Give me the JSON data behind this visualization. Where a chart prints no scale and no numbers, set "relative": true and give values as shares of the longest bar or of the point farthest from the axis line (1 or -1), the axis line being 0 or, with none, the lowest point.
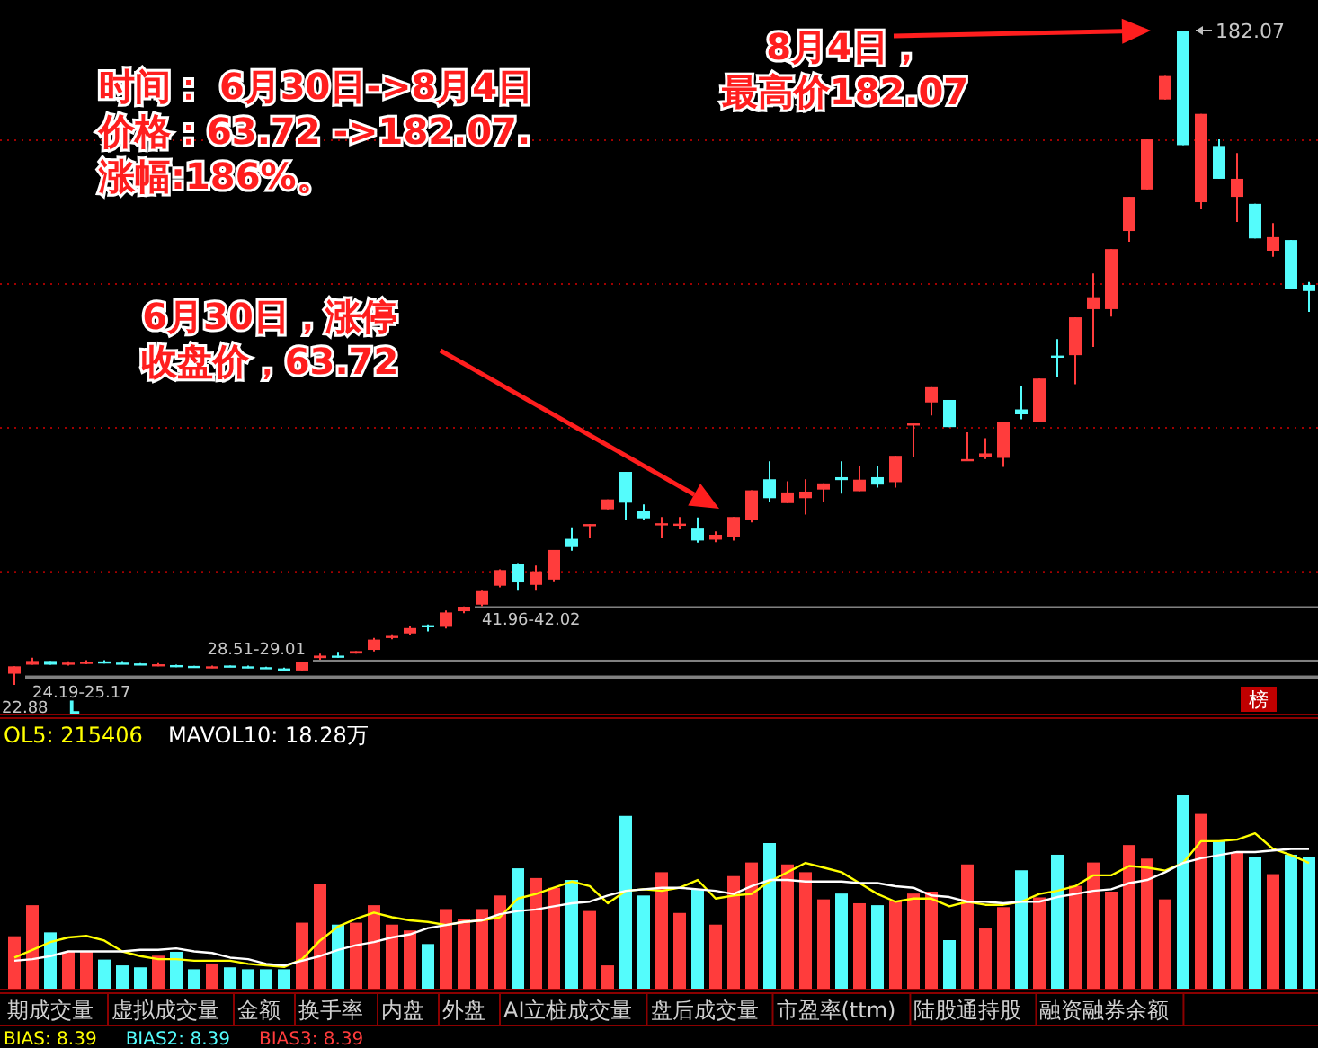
{
  "chart_data": [
    {
      "type": "candlestick",
      "categories": [
        null,
        null,
        null,
        null,
        null,
        null,
        null,
        null,
        null,
        null,
        null,
        null,
        null,
        null,
        null,
        null,
        null,
        null,
        null,
        null,
        null,
        null,
        null,
        null,
        null,
        null,
        null,
        null,
        null,
        null,
        null,
        null,
        null,
        null,
        null,
        null,
        null,
        null,
        null,
        null,
        null,
        null,
        null,
        null,
        null,
        null,
        null,
        null,
        null,
        null,
        null,
        null,
        null,
        null,
        null,
        null,
        null,
        null,
        null,
        null,
        null,
        null,
        null,
        null,
        null,
        null,
        null,
        null,
        null,
        null,
        null,
        null,
        null
      ],
      "ohlc": [
        [
          25.6,
          27.4,
          22.88,
          27.4
        ],
        [
          27.8,
          29.5,
          27.8,
          28.7
        ],
        [
          28.7,
          28.7,
          27.8,
          27.8
        ],
        [
          27.9,
          28.6,
          27.6,
          28.3
        ],
        [
          28.1,
          28.9,
          27.9,
          28.5
        ],
        [
          28.6,
          28.9,
          28.1,
          28.4
        ],
        [
          28.3,
          28.7,
          27.9,
          28.1
        ],
        [
          28.1,
          28.2,
          27.9,
          28.0
        ],
        [
          27.6,
          28.2,
          27.4,
          27.9
        ],
        [
          27.7,
          27.8,
          27.2,
          27.5
        ],
        [
          27.5,
          27.5,
          27.2,
          27.3
        ],
        [
          27.2,
          27.6,
          27.0,
          27.4
        ],
        [
          27.6,
          27.6,
          27.3,
          27.4
        ],
        [
          27.4,
          27.6,
          27.0,
          27.2
        ],
        [
          27.2,
          27.3,
          26.9,
          27.0
        ],
        [
          26.9,
          27.1,
          26.5,
          26.8
        ],
        [
          26.4,
          28.51,
          26.3,
          28.5
        ],
        [
          29.4,
          30.5,
          29.01,
          30.0
        ],
        [
          30.0,
          30.9,
          29.5,
          29.7
        ],
        [
          30.5,
          31.1,
          30.5,
          31.1
        ],
        [
          31.4,
          34.3,
          31.0,
          33.9
        ],
        [
          34.3,
          35.2,
          34.0,
          34.8
        ],
        [
          35.4,
          37.1,
          35.0,
          36.7
        ],
        [
          37.4,
          37.6,
          35.9,
          37.1
        ],
        [
          37.0,
          41.0,
          36.6,
          40.5
        ],
        [
          40.8,
          41.96,
          40.3,
          41.9
        ],
        [
          42.4,
          46.0,
          42.02,
          45.9
        ],
        [
          47.0,
          51.0,
          46.6,
          50.8
        ],
        [
          52.3,
          52.5,
          46.0,
          47.8
        ],
        [
          47.2,
          51.9,
          46.0,
          50.5
        ],
        [
          48.5,
          55.7,
          48.1,
          55.7
        ],
        [
          58.4,
          61.2,
          55.5,
          56.4
        ],
        [
          61.7,
          62.0,
          58.5,
          62.0
        ],
        [
          65.6,
          68.0,
          65.6,
          68.0
        ],
        [
          74.7,
          74.7,
          62.9,
          67.2
        ],
        [
          65.2,
          66.8,
          63.0,
          63.4
        ],
        [
          62.0,
          63.7,
          58.5,
          62.2
        ],
        [
          61.9,
          63.7,
          60.7,
          62.1
        ],
        [
          60.9,
          63.6,
          57.5,
          58.0
        ],
        [
          58.2,
          60.2,
          57.6,
          59.4
        ],
        [
          58.8,
          63.72,
          58.0,
          63.72
        ],
        [
          63.0,
          70.2,
          62.4,
          70.2
        ],
        [
          72.9,
          77.3,
          67.3,
          68.3
        ],
        [
          67.1,
          72.4,
          67.1,
          69.7
        ],
        [
          68.3,
          72.9,
          64.3,
          69.9
        ],
        [
          70.4,
          71.9,
          67.3,
          71.9
        ],
        [
          73.4,
          77.3,
          69.4,
          72.7
        ],
        [
          70.0,
          76.0,
          70.0,
          72.8
        ],
        [
          73.4,
          76.0,
          70.9,
          71.6
        ],
        [
          72.2,
          78.6,
          70.9,
          78.6
        ],
        [
          86.3,
          86.5,
          78.3,
          86.5
        ],
        [
          91.6,
          95.3,
          88.4,
          95.3
        ],
        [
          92.2,
          92.2,
          85.6,
          85.6
        ],
        [
          77.6,
          84.3,
          77.6,
          77.8
        ],
        [
          78.3,
          82.9,
          77.8,
          79.2
        ],
        [
          78.1,
          86.8,
          75.9,
          86.8
        ],
        [
          89.9,
          95.6,
          87.5,
          88.7
        ],
        [
          86.8,
          97.4,
          86.8,
          97.4
        ],
        [
          103.0,
          107.0,
          97.8,
          102.6
        ],
        [
          103.1,
          112.3,
          96.0,
          112.3
        ],
        [
          114.3,
          123.0,
          105.1,
          117.2
        ],
        [
          114.3,
          128.9,
          112.5,
          128.9
        ],
        [
          133.3,
          141.6,
          130.7,
          141.6
        ],
        [
          143.4,
          155.6,
          143.4,
          155.6
        ],
        [
          165.3,
          171.0,
          165.3,
          171.0
        ],
        [
          182.07,
          182.07,
          154.2,
          154.2
        ],
        [
          140.3,
          161.8,
          138.8,
          161.8
        ],
        [
          154.0,
          155.6,
          146.0,
          146.0
        ],
        [
          141.6,
          152.3,
          135.5,
          146.0
        ],
        [
          139.9,
          139.9,
          131.5,
          131.5
        ],
        [
          128.5,
          135.2,
          127.0,
          131.8
        ],
        [
          131.1,
          131.1,
          119.1,
          119.1
        ],
        [
          120.2,
          120.9,
          113.6,
          118.7
        ]
      ],
      "colors": [
        "#ff3c3c",
        "#ff3c3c",
        "#54fcfc",
        "#ff3c3c",
        "#ff3c3c",
        "#54fcfc",
        "#54fcfc",
        "#54fcfc",
        "#ff3c3c",
        "#54fcfc",
        "#54fcfc",
        "#ff3c3c",
        "#54fcfc",
        "#54fcfc",
        "#54fcfc",
        "#54fcfc",
        "#ff3c3c",
        "#ff3c3c",
        "#54fcfc",
        "#ff3c3c",
        "#ff3c3c",
        "#ff3c3c",
        "#ff3c3c",
        "#54fcfc",
        "#ff3c3c",
        "#ff3c3c",
        "#ff3c3c",
        "#ff3c3c",
        "#54fcfc",
        "#ff3c3c",
        "#ff3c3c",
        "#54fcfc",
        "#ff3c3c",
        "#ff3c3c",
        "#54fcfc",
        "#54fcfc",
        "#ff3c3c",
        "#ff3c3c",
        "#54fcfc",
        "#ff3c3c",
        "#ff3c3c",
        "#ff3c3c",
        "#54fcfc",
        "#ff3c3c",
        "#ff3c3c",
        "#ff3c3c",
        "#54fcfc",
        "#ff3c3c",
        "#54fcfc",
        "#ff3c3c",
        "#ff3c3c",
        "#ff3c3c",
        "#54fcfc",
        "#ff3c3c",
        "#ff3c3c",
        "#ff3c3c",
        "#54fcfc",
        "#ff3c3c",
        "#54fcfc",
        "#ff3c3c",
        "#ff3c3c",
        "#ff3c3c",
        "#ff3c3c",
        "#ff3c3c",
        "#ff3c3c",
        "#54fcfc",
        "#ff3c3c",
        "#54fcfc",
        "#ff3c3c",
        "#54fcfc",
        "#ff3c3c",
        "#54fcfc",
        "#54fcfc"
      ],
      "yticks": [
        {
          "value": 50.4,
          "label": null
        },
        {
          "value": 85.4,
          "label": null
        },
        {
          "value": 120.4,
          "label": null
        },
        {
          "value": 155.4,
          "label": null
        }
      ],
      "grid": "y",
      "bands": [
        {
          "axis": "y",
          "from": 41.96,
          "to": 42.02,
          "label": "41.96-42.02",
          "color": "#808080"
        },
        {
          "axis": "y",
          "from": 28.51,
          "to": 29.01,
          "label": "28.51-29.01",
          "color": "#808080"
        },
        {
          "axis": "y",
          "from": 24.19,
          "to": 25.17,
          "label": "24.19-25.17",
          "color": "#808080"
        }
      ],
      "annotations": [
        "时间： 6月30日->8月4日",
        "价格：63.72 ->182.07.",
        "涨幅:186%。",
        "6月30日，涨停",
        "收盘价，63.72",
        "8月4日，",
        "最高价182.07",
        "182.07",
        "22.88",
        "L",
        "榜"
      ]
    },
    {
      "type": "bar",
      "relative": true,
      "categories": [
        null,
        null,
        null,
        null,
        null,
        null,
        null,
        null,
        null,
        null,
        null,
        null,
        null,
        null,
        null,
        null,
        null,
        null,
        null,
        null,
        null,
        null,
        null,
        null,
        null,
        null,
        null,
        null,
        null,
        null,
        null,
        null,
        null,
        null,
        null,
        null,
        null,
        null,
        null,
        null,
        null,
        null,
        null,
        null,
        null,
        null,
        null,
        null,
        null,
        null,
        null,
        null,
        null,
        null,
        null,
        null,
        null,
        null,
        null,
        null,
        null,
        null,
        null,
        null,
        null,
        null,
        null,
        null,
        null,
        null,
        null,
        null,
        null
      ],
      "colors": [
        "#ff3c3c",
        "#ff3c3c",
        "#54fcfc",
        "#ff3c3c",
        "#ff3c3c",
        "#54fcfc",
        "#54fcfc",
        "#54fcfc",
        "#ff3c3c",
        "#54fcfc",
        "#54fcfc",
        "#ff3c3c",
        "#54fcfc",
        "#54fcfc",
        "#54fcfc",
        "#54fcfc",
        "#ff3c3c",
        "#ff3c3c",
        "#54fcfc",
        "#ff3c3c",
        "#ff3c3c",
        "#ff3c3c",
        "#ff3c3c",
        "#54fcfc",
        "#ff3c3c",
        "#ff3c3c",
        "#ff3c3c",
        "#ff3c3c",
        "#54fcfc",
        "#ff3c3c",
        "#ff3c3c",
        "#54fcfc",
        "#ff3c3c",
        "#ff3c3c",
        "#54fcfc",
        "#54fcfc",
        "#ff3c3c",
        "#ff3c3c",
        "#54fcfc",
        "#ff3c3c",
        "#ff3c3c",
        "#ff3c3c",
        "#54fcfc",
        "#ff3c3c",
        "#ff3c3c",
        "#ff3c3c",
        "#54fcfc",
        "#ff3c3c",
        "#54fcfc",
        "#ff3c3c",
        "#ff3c3c",
        "#ff3c3c",
        "#54fcfc",
        "#ff3c3c",
        "#ff3c3c",
        "#ff3c3c",
        "#54fcfc",
        "#ff3c3c",
        "#54fcfc",
        "#ff3c3c",
        "#ff3c3c",
        "#ff3c3c",
        "#ff3c3c",
        "#ff3c3c",
        "#ff3c3c",
        "#54fcfc",
        "#ff3c3c",
        "#54fcfc",
        "#ff3c3c",
        "#54fcfc",
        "#ff3c3c",
        "#54fcfc",
        "#54fcfc"
      ],
      "values": [
        0.27,
        0.43,
        0.29,
        0.19,
        0.19,
        0.15,
        0.12,
        0.11,
        0.17,
        0.19,
        0.1,
        0.13,
        0.11,
        0.1,
        0.1,
        0.1,
        0.34,
        0.54,
        0.33,
        0.34,
        0.43,
        0.33,
        0.3,
        0.23,
        0.41,
        0.36,
        0.41,
        0.48,
        0.62,
        0.57,
        0.52,
        0.56,
        0.4,
        0.12,
        0.89,
        0.48,
        0.6,
        0.39,
        0.51,
        0.33,
        0.58,
        0.65,
        0.75,
        0.64,
        0.6,
        0.46,
        0.49,
        0.44,
        0.43,
        0.45,
        0.49,
        0.5,
        0.25,
        0.64,
        0.31,
        0.42,
        0.61,
        0.47,
        0.69,
        0.53,
        0.65,
        0.5,
        0.74,
        0.67,
        0.46,
        1,
        0.9,
        0.76,
        0.7,
        0.68,
        0.59,
        0.69,
        0.68
      ]
    },
    {
      "type": "line",
      "relative": true,
      "categories": [
        null,
        null,
        null,
        null,
        null,
        null,
        null,
        null,
        null,
        null,
        null,
        null,
        null,
        null,
        null,
        null,
        null,
        null,
        null,
        null,
        null,
        null,
        null,
        null,
        null,
        null,
        null,
        null,
        null,
        null,
        null,
        null,
        null,
        null,
        null,
        null,
        null,
        null,
        null,
        null,
        null,
        null,
        null,
        null,
        null,
        null,
        null,
        null,
        null,
        null,
        null,
        null,
        null,
        null,
        null,
        null,
        null,
        null,
        null,
        null,
        null,
        null,
        null,
        null,
        null,
        null,
        null,
        null,
        null,
        null,
        null,
        null,
        null
      ],
      "series": [
        {
          "name": "OL5: 215406",
          "color": "#ffff00",
          "values": [
            0.2,
            0.25,
            0.3,
            0.33,
            0.34,
            0.31,
            0.24,
            0.21,
            0.19,
            0.19,
            0.18,
            0.18,
            0.18,
            0.16,
            0.15,
            0.14,
            0.19,
            0.31,
            0.4,
            0.45,
            0.49,
            0.46,
            0.44,
            0.43,
            0.41,
            0.43,
            0.44,
            0.46,
            0.58,
            0.61,
            0.65,
            0.69,
            0.66,
            0.55,
            0.63,
            0.64,
            0.63,
            0.65,
            0.7,
            0.58,
            0.6,
            0.61,
            0.69,
            0.75,
            0.81,
            0.78,
            0.75,
            0.68,
            0.61,
            0.56,
            0.58,
            0.58,
            0.53,
            0.56,
            0.54,
            0.54,
            0.56,
            0.61,
            0.63,
            0.66,
            0.73,
            0.73,
            0.79,
            0.78,
            0.76,
            0.81,
            0.95,
            0.95,
            0.96,
            1,
            0.9,
            0.86,
            0.81
          ]
        },
        {
          "name": "MAVOL10: 18.28万",
          "color": "#ffffff",
          "values": [
            0.18,
            0.19,
            0.21,
            0.24,
            0.24,
            0.24,
            0.24,
            0.25,
            0.25,
            0.26,
            0.24,
            0.23,
            0.2,
            0.19,
            0.16,
            0.15,
            0.18,
            0.21,
            0.25,
            0.28,
            0.3,
            0.33,
            0.35,
            0.39,
            0.41,
            0.43,
            0.44,
            0.48,
            0.5,
            0.51,
            0.53,
            0.55,
            0.56,
            0.6,
            0.63,
            0.64,
            0.65,
            0.65,
            0.64,
            0.63,
            0.61,
            0.66,
            0.7,
            0.7,
            0.69,
            0.69,
            0.69,
            0.68,
            0.68,
            0.66,
            0.65,
            0.6,
            0.59,
            0.56,
            0.56,
            0.55,
            0.56,
            0.56,
            0.59,
            0.61,
            0.63,
            0.64,
            0.68,
            0.7,
            0.75,
            0.81,
            0.84,
            0.86,
            0.88,
            0.88,
            0.89,
            0.9,
            0.9
          ]
        }
      ]
    },
    {
      "type": "other",
      "annotations": [
        "期成交量",
        "虚拟成交量",
        "金额",
        "换手率",
        "内盘",
        "外盘",
        "AI立桩成交量",
        "盘后成交量",
        "市盈率(ttm)",
        "陆股通持股",
        "融资融券余额"
      ]
    },
    {
      "type": "other",
      "annotations": [
        "BIAS: 8.39",
        "BIAS2: 8.39",
        "BIAS3: 8.39"
      ],
      "colors": [
        "#ffff00",
        "#54fcfc",
        "#ff3c3c"
      ]
    }
  ]
}
